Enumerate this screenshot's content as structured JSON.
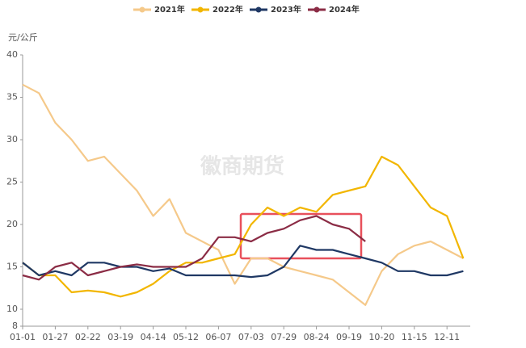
{
  "chart_data": {
    "type": "line",
    "y_axis_label": "元/公斤",
    "watermark": "徽商期货",
    "categories": [
      "01-01",
      null,
      "01-27",
      null,
      "02-22",
      null,
      "03-19",
      null,
      "04-14",
      null,
      "05-12",
      null,
      "06-07",
      null,
      "07-03",
      null,
      "07-29",
      null,
      "08-24",
      null,
      "09-19",
      null,
      "10-20",
      null,
      "11-15",
      null,
      "12-11",
      null
    ],
    "series": [
      {
        "name": "2021年",
        "color": "#f5c98a",
        "values": [
          36.5,
          35.5,
          32,
          30,
          27.5,
          28,
          26,
          24,
          21,
          23,
          19,
          18,
          17,
          13,
          16,
          16,
          15,
          14.5,
          14,
          13.5,
          12,
          10.5,
          14.5,
          16.5,
          17.5,
          18,
          17,
          16
        ]
      },
      {
        "name": "2022年",
        "color": "#f2b600",
        "values": [
          15.5,
          14,
          14,
          12,
          12.2,
          12,
          11.5,
          12,
          13,
          14.5,
          15.5,
          15.5,
          16,
          16.5,
          20,
          22,
          21,
          22,
          21.5,
          23.5,
          24,
          24.5,
          28,
          27,
          24.5,
          22,
          21,
          16
        ]
      },
      {
        "name": "2023年",
        "color": "#1f3864",
        "values": [
          15.5,
          14,
          14.5,
          14,
          15.5,
          15.5,
          15,
          15,
          14.5,
          14.8,
          14,
          14,
          14,
          14,
          13.8,
          14,
          15,
          17.5,
          17,
          17,
          16.5,
          16,
          15.5,
          14.5,
          14.5,
          14,
          14,
          14.5
        ]
      },
      {
        "name": "2024年",
        "color": "#8b2c45",
        "values": [
          14,
          13.5,
          15,
          15.5,
          14,
          14.5,
          15,
          15.3,
          15,
          15,
          15,
          16,
          18.5,
          18.5,
          18,
          19,
          19.5,
          20.5,
          21,
          20,
          19.5,
          18,
          null,
          null,
          null,
          null,
          null,
          null
        ]
      }
    ],
    "ylim": [
      8,
      40
    ],
    "yticks": [
      8,
      10,
      15,
      20,
      25,
      30,
      35,
      40
    ],
    "grid": false
  }
}
